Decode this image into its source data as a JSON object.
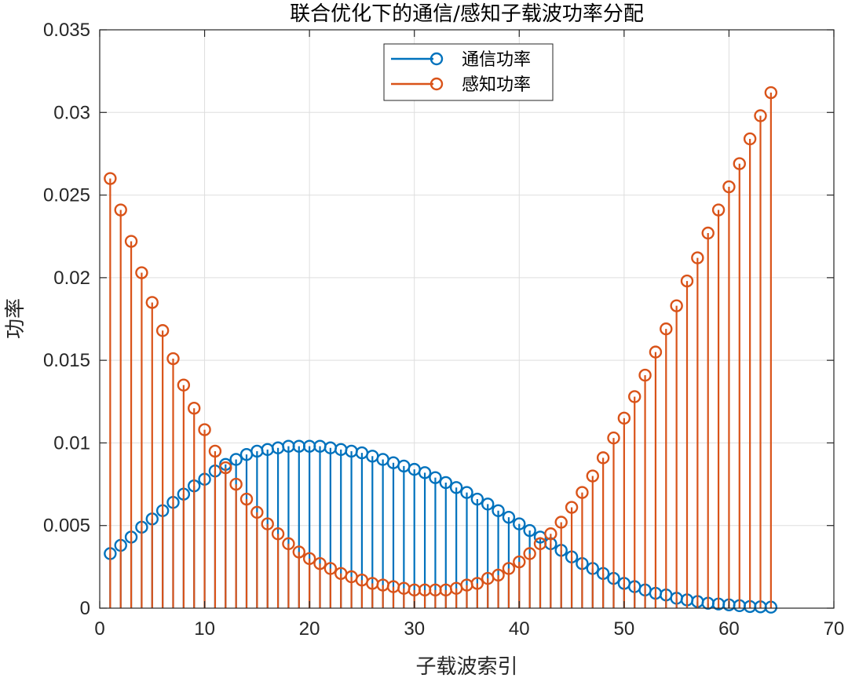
{
  "chart_data": {
    "type": "stem",
    "title": "联合优化下的通信/感知子载波功率分配",
    "xlabel": "子载波索引",
    "ylabel": "功率",
    "xlim": [
      0,
      70
    ],
    "ylim": [
      0,
      0.035
    ],
    "xticks": [
      0,
      10,
      20,
      30,
      40,
      50,
      60,
      70
    ],
    "yticks": [
      0,
      0.005,
      0.01,
      0.015,
      0.02,
      0.025,
      0.03,
      0.035
    ],
    "xtick_labels": [
      "0",
      "10",
      "20",
      "30",
      "40",
      "50",
      "60",
      "70"
    ],
    "ytick_labels": [
      "0",
      "0.005",
      "0.01",
      "0.015",
      "0.02",
      "0.025",
      "0.03",
      "0.035"
    ],
    "grid": true,
    "legend_position": "top-center",
    "x": [
      1,
      2,
      3,
      4,
      5,
      6,
      7,
      8,
      9,
      10,
      11,
      12,
      13,
      14,
      15,
      16,
      17,
      18,
      19,
      20,
      21,
      22,
      23,
      24,
      25,
      26,
      27,
      28,
      29,
      30,
      31,
      32,
      33,
      34,
      35,
      36,
      37,
      38,
      39,
      40,
      41,
      42,
      43,
      44,
      45,
      46,
      47,
      48,
      49,
      50,
      51,
      52,
      53,
      54,
      55,
      56,
      57,
      58,
      59,
      60,
      61,
      62,
      63,
      64
    ],
    "series": [
      {
        "name": "通信功率",
        "color": "#0072BD",
        "values": [
          0.0033,
          0.0038,
          0.0043,
          0.0049,
          0.0054,
          0.0059,
          0.0064,
          0.0069,
          0.0074,
          0.0078,
          0.0083,
          0.0087,
          0.009,
          0.0093,
          0.0095,
          0.0096,
          0.0097,
          0.0098,
          0.0098,
          0.0098,
          0.0098,
          0.0097,
          0.0096,
          0.0095,
          0.0094,
          0.0092,
          0.009,
          0.0088,
          0.0086,
          0.0084,
          0.0082,
          0.0079,
          0.0076,
          0.0073,
          0.007,
          0.0066,
          0.0063,
          0.0059,
          0.0055,
          0.0051,
          0.0047,
          0.0043,
          0.0039,
          0.0035,
          0.0031,
          0.0027,
          0.0024,
          0.0021,
          0.0018,
          0.0015,
          0.0013,
          0.0011,
          0.0009,
          0.0008,
          0.0006,
          0.0005,
          0.0004,
          0.0003,
          0.00025,
          0.0002,
          0.00015,
          0.0001,
          8e-05,
          6e-05
        ]
      },
      {
        "name": "感知功率",
        "color": "#D95319",
        "values": [
          0.026,
          0.0241,
          0.0222,
          0.0203,
          0.0185,
          0.0168,
          0.0151,
          0.0135,
          0.0121,
          0.0108,
          0.0095,
          0.0085,
          0.0075,
          0.0066,
          0.0058,
          0.0051,
          0.0045,
          0.0039,
          0.0034,
          0.003,
          0.0027,
          0.0024,
          0.0021,
          0.0019,
          0.0017,
          0.0015,
          0.0014,
          0.0013,
          0.0012,
          0.0011,
          0.0011,
          0.0011,
          0.0011,
          0.0012,
          0.0014,
          0.0015,
          0.0018,
          0.002,
          0.0024,
          0.0028,
          0.0033,
          0.0039,
          0.0045,
          0.0052,
          0.0061,
          0.007,
          0.008,
          0.0091,
          0.0103,
          0.0115,
          0.0128,
          0.0141,
          0.0155,
          0.0169,
          0.0183,
          0.0198,
          0.0212,
          0.0227,
          0.0241,
          0.0255,
          0.0269,
          0.0284,
          0.0298,
          0.0312
        ]
      }
    ]
  }
}
